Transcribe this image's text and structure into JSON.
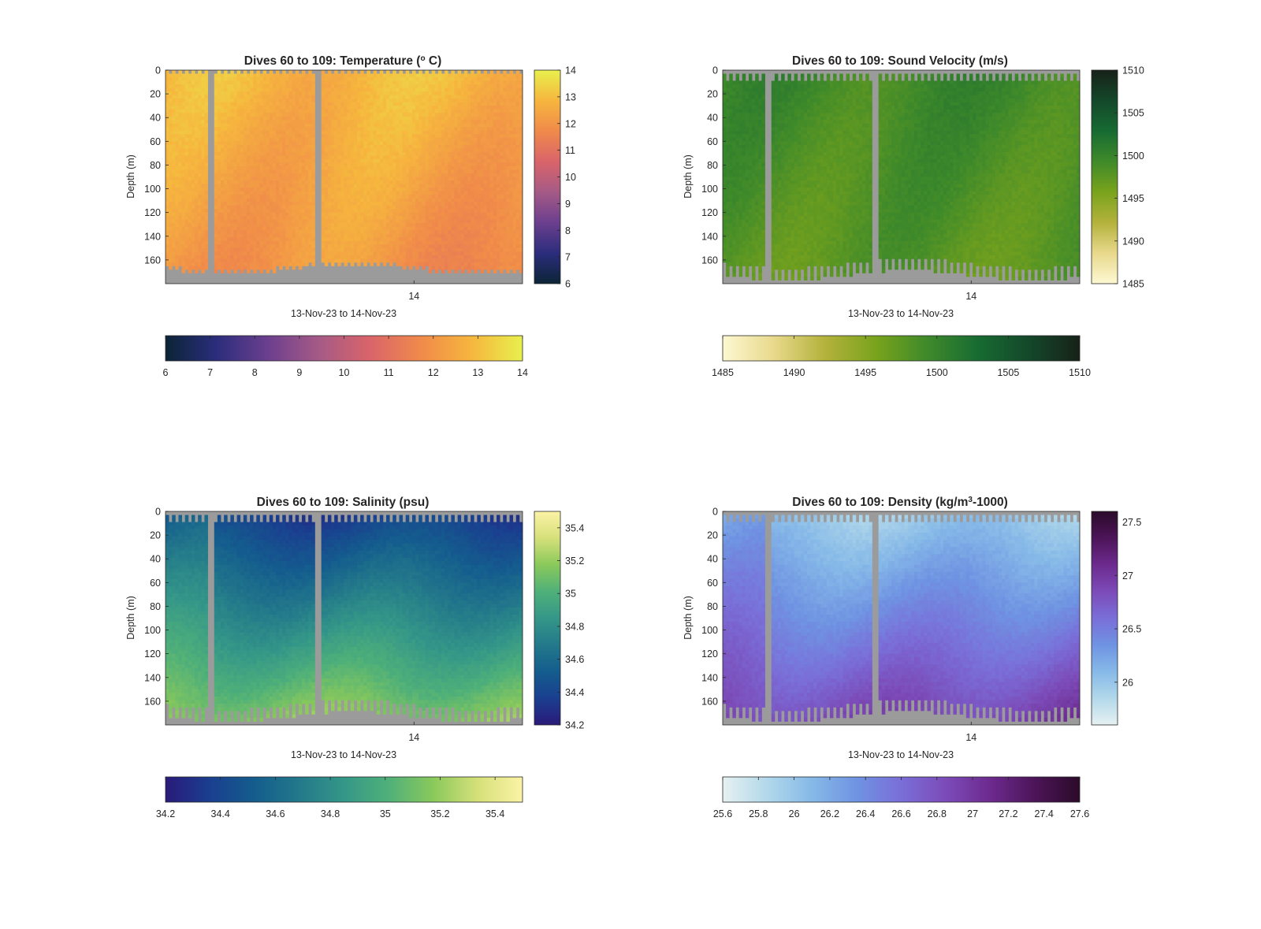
{
  "chart_data": [
    {
      "type": "heatmap",
      "id": "temperature",
      "title": "Dives 60 to 109: Temperature (° C)",
      "title_base": "Dives 60 to 109: Temperature (",
      "title_sup": "o",
      "title_end": " C)",
      "ylabel": "Depth (m)",
      "xlabel": "13-Nov-23 to 14-Nov-23",
      "x_ticks": [
        "14"
      ],
      "y_ticks": [
        0,
        20,
        40,
        60,
        80,
        100,
        120,
        140,
        160
      ],
      "ylim": [
        0,
        180
      ],
      "y_reversed": true,
      "clim": [
        6,
        14
      ],
      "colormap": "thermal",
      "colormap_stops": [
        "#0b2436",
        "#2b2d7c",
        "#6b3f8e",
        "#a55a86",
        "#d9646a",
        "#f08a4a",
        "#f6b63e",
        "#e8f04d"
      ],
      "cbar_right_ticks": [
        6,
        7,
        8,
        9,
        10,
        11,
        12,
        13,
        14
      ],
      "cbar_bottom_ticks": [
        "6",
        "7",
        "8",
        "9",
        "10",
        "11",
        "12",
        "13",
        "14"
      ],
      "nan_color": "#9b9b9b",
      "top_value": 12.9,
      "bottom_value": 12.0,
      "top_pattern": "ragged"
    },
    {
      "type": "heatmap",
      "id": "sound-velocity",
      "title": "Dives 60 to 109: Sound Velocity (m/s)",
      "ylabel": "Depth (m)",
      "xlabel": "13-Nov-23 to 14-Nov-23",
      "x_ticks": [
        "14"
      ],
      "y_ticks": [
        0,
        20,
        40,
        60,
        80,
        100,
        120,
        140,
        160
      ],
      "ylim": [
        0,
        180
      ],
      "y_reversed": true,
      "clim": [
        1485,
        1510
      ],
      "colormap": "speed",
      "colormap_stops": [
        "#fdf8d2",
        "#e8d98c",
        "#b4b23c",
        "#79a31c",
        "#3f8a2a",
        "#176b32",
        "#14482a",
        "#172118"
      ],
      "cbar_right_ticks": [
        1485,
        1490,
        1495,
        1500,
        1505,
        1510
      ],
      "cbar_bottom_ticks": [
        "1485",
        "1490",
        "1495",
        "1500",
        "1505",
        "1510"
      ],
      "nan_color": "#9b9b9b",
      "top_value": 1499.5,
      "bottom_value": 1497.5,
      "top_pattern": "comb"
    },
    {
      "type": "heatmap",
      "id": "salinity",
      "title": "Dives 60 to 109: Salinity (psu)",
      "ylabel": "Depth (m)",
      "xlabel": "13-Nov-23 to 14-Nov-23",
      "x_ticks": [
        "14"
      ],
      "y_ticks": [
        0,
        20,
        40,
        60,
        80,
        100,
        120,
        140,
        160
      ],
      "ylim": [
        0,
        180
      ],
      "y_reversed": true,
      "clim": [
        34.2,
        35.5
      ],
      "colormap": "haline",
      "colormap_stops": [
        "#2a1a7a",
        "#1a3f8f",
        "#145d8e",
        "#23798a",
        "#349788",
        "#4fb079",
        "#8ac95b",
        "#d6e07a",
        "#fbf3a6"
      ],
      "cbar_right_ticks": [
        34.2,
        34.4,
        34.6,
        34.8,
        35,
        35.2,
        35.4
      ],
      "cbar_bottom_ticks": [
        "34.2",
        "34.4",
        "34.6",
        "34.8",
        "35",
        "35.2",
        "35.4"
      ],
      "nan_color": "#9b9b9b",
      "top_value": 34.35,
      "bottom_value": 35.2,
      "top_pattern": "comb"
    },
    {
      "type": "heatmap",
      "id": "density",
      "title": "Dives 60 to 109: Density (kg/m³-1000)",
      "title_base": "Dives 60 to 109: Density (kg/m",
      "title_sup": "3",
      "title_end": "-1000)",
      "ylabel": "Depth (m)",
      "xlabel": "13-Nov-23 to 14-Nov-23",
      "x_ticks": [
        "14"
      ],
      "y_ticks": [
        0,
        20,
        40,
        60,
        80,
        100,
        120,
        140,
        160
      ],
      "ylim": [
        0,
        180
      ],
      "y_reversed": true,
      "clim": [
        25.6,
        27.6
      ],
      "colormap": "dense",
      "colormap_stops": [
        "#e6f1f1",
        "#b2d8ea",
        "#86b9e8",
        "#6f93e2",
        "#7a6ed8",
        "#7c4bb8",
        "#6c2a8e",
        "#4c1458",
        "#2b0b2a"
      ],
      "cbar_right_ticks": [
        26,
        26.5,
        27,
        27.5
      ],
      "cbar_bottom_ticks": [
        "25.6",
        "25.8",
        "26",
        "26.2",
        "26.4",
        "26.6",
        "26.8",
        "27",
        "27.2",
        "27.4",
        "27.6"
      ],
      "nan_color": "#9b9b9b",
      "top_value": 25.95,
      "bottom_value": 26.9,
      "top_pattern": "comb"
    }
  ]
}
